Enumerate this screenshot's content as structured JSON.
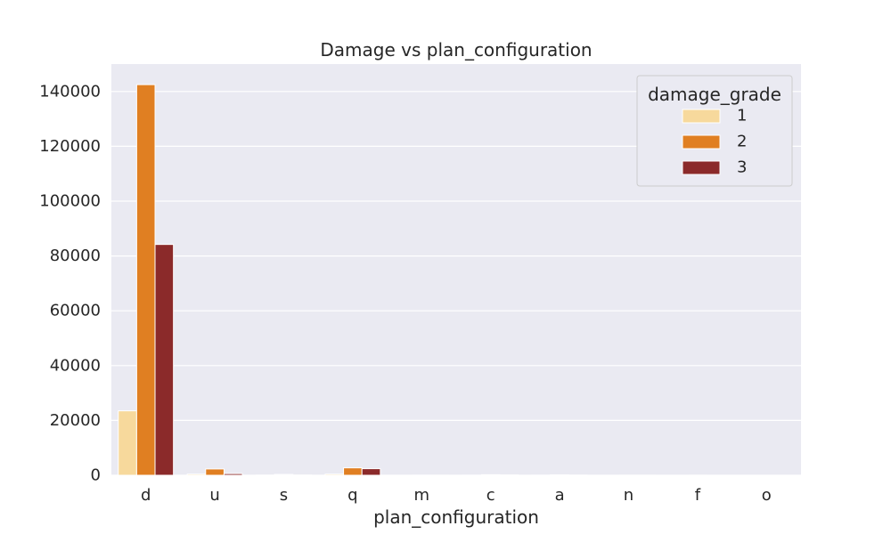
{
  "chart_data": {
    "type": "bar",
    "title": "Damage vs plan_configuration",
    "xlabel": "plan_configuration",
    "ylabel": "",
    "categories": [
      "d",
      "u",
      "s",
      "q",
      "m",
      "c",
      "a",
      "n",
      "f",
      "o"
    ],
    "series": [
      {
        "name": "1",
        "color": "#f7d99c",
        "values": [
          23500,
          400,
          60,
          400,
          5,
          30,
          40,
          5,
          5,
          2
        ]
      },
      {
        "name": "2",
        "color": "#e07f22",
        "values": [
          142500,
          2300,
          300,
          2700,
          30,
          200,
          150,
          20,
          10,
          5
        ]
      },
      {
        "name": "3",
        "color": "#8b2a2a",
        "values": [
          84200,
          600,
          80,
          2400,
          10,
          90,
          60,
          10,
          5,
          2
        ]
      }
    ],
    "yticks": [
      0,
      20000,
      40000,
      60000,
      80000,
      100000,
      120000,
      140000
    ],
    "ylim": [
      0,
      150000
    ],
    "grid": true,
    "legend": {
      "title": "damage_grade",
      "position": "top-right"
    }
  }
}
